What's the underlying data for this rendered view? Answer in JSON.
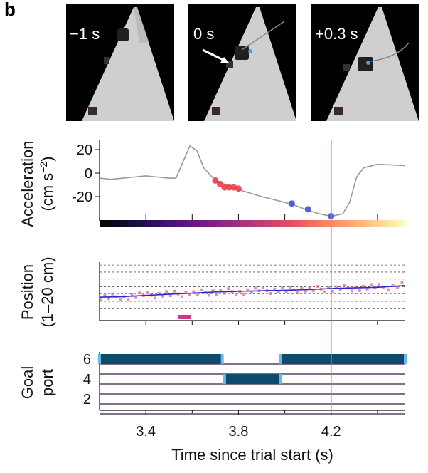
{
  "panel_label": "b",
  "frames": [
    {
      "label": "−1 s"
    },
    {
      "label": "0 s"
    },
    {
      "label": "+0.3 s"
    }
  ],
  "colors": {
    "trace": "#9a9a9a",
    "event_line": "#f07a2a",
    "red_points": "#e8383f",
    "blue_points": "#5560d8",
    "position_smooth": "#2a2ad0",
    "position_raw": "#e070a0",
    "goal_on": "#0f4a6e",
    "goal_edge": "#66b8e8",
    "row_line": "#3a1a40"
  },
  "chart_data": [
    {
      "type": "line",
      "name": "acceleration",
      "ylabel": "Acceleration",
      "ylabel_units": "(cm s",
      "ylabel_exp": "−2",
      "ylabel_close": ")",
      "xlim": [
        3.2,
        4.52
      ],
      "ylim": [
        -41,
        27
      ],
      "yticks": [
        20,
        0,
        -20
      ],
      "x": [
        3.2,
        3.25,
        3.3,
        3.35,
        3.4,
        3.45,
        3.5,
        3.53,
        3.56,
        3.59,
        3.62,
        3.65,
        3.7,
        3.75,
        3.8,
        3.9,
        4.0,
        4.05,
        4.1,
        4.15,
        4.2,
        4.25,
        4.28,
        4.31,
        4.34,
        4.4,
        4.52
      ],
      "y": [
        -4,
        -5,
        -4,
        -3,
        -2,
        -3,
        -4,
        -4,
        10,
        24,
        20,
        5,
        -6,
        -10,
        -14,
        -20,
        -25,
        -28,
        -32,
        -35,
        -37,
        -35,
        -25,
        -3,
        5,
        8,
        7
      ],
      "red_points": {
        "x": [
          3.7,
          3.72,
          3.74,
          3.76,
          3.78,
          3.8
        ],
        "y": [
          -6,
          -9,
          -12,
          -12,
          -12,
          -13
        ]
      },
      "blue_points": {
        "x": [
          4.03,
          4.1,
          4.2
        ],
        "y": [
          -26,
          -31,
          -37
        ]
      },
      "colorbar": {
        "colormap": "magma",
        "range": [
          3.2,
          4.52
        ]
      },
      "event_x": 4.2
    },
    {
      "type": "line",
      "name": "position",
      "ylabel": "Position",
      "ylabel_units": "(1–20 cm)",
      "xlim": [
        3.2,
        4.52
      ],
      "ylim": [
        0,
        1
      ],
      "smooth": {
        "x": [
          3.2,
          3.3,
          3.4,
          3.5,
          3.6,
          3.7,
          3.8,
          3.9,
          4.0,
          4.1,
          4.2,
          4.3,
          4.4,
          4.52
        ],
        "y": [
          0.4,
          0.41,
          0.43,
          0.45,
          0.47,
          0.49,
          0.5,
          0.51,
          0.52,
          0.53,
          0.55,
          0.56,
          0.57,
          0.6
        ]
      },
      "event_x": 4.2
    },
    {
      "type": "heatmap",
      "name": "goal_port",
      "ylabel": "Goal",
      "ylabel2": "port",
      "yticks": [
        6,
        4,
        2
      ],
      "xlim": [
        3.2,
        4.52
      ],
      "rows_on": {
        "6": [
          [
            3.2,
            3.73
          ],
          [
            3.98,
            4.52
          ]
        ],
        "4": [
          [
            3.74,
            3.98
          ]
        ]
      },
      "xticks": [
        3.4,
        3.8,
        4.2
      ],
      "xlabel": "Time since trial start (s)",
      "event_x": 4.2
    }
  ]
}
